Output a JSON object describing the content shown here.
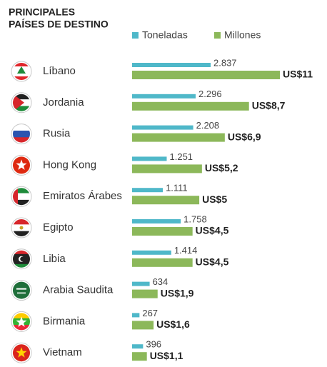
{
  "chart_data": {
    "type": "bar",
    "title_lines": [
      "PRINCIPALES",
      "PAÍSES DE DESTINO"
    ],
    "categories": [
      "Líbano",
      "Jordania",
      "Rusia",
      "Hong Kong",
      "Emiratos Árabes",
      "Egipto",
      "Libia",
      "Arabia Saudita",
      "Birmania",
      "Vietnam"
    ],
    "series": [
      {
        "name": "Toneladas",
        "color": "#4fb8c9",
        "values": [
          2837,
          2296,
          2208,
          1251,
          1111,
          1758,
          1414,
          634,
          267,
          396
        ],
        "value_labels": [
          "2.837",
          "2.296",
          "2.208",
          "1.251",
          "1.111",
          "1.758",
          "1.414",
          "634",
          "267",
          "396"
        ]
      },
      {
        "name": "Millones",
        "color": "#8cb85a",
        "values": [
          11,
          8.7,
          6.9,
          5.2,
          5,
          4.5,
          4.5,
          1.9,
          1.6,
          1.1
        ],
        "value_labels": [
          "US$11",
          "US$8,7",
          "US$6,9",
          "US$5,2",
          "US$5",
          "US$4,5",
          "US$4,5",
          "US$1,9",
          "US$1,6",
          "US$1,1"
        ]
      }
    ]
  }
}
